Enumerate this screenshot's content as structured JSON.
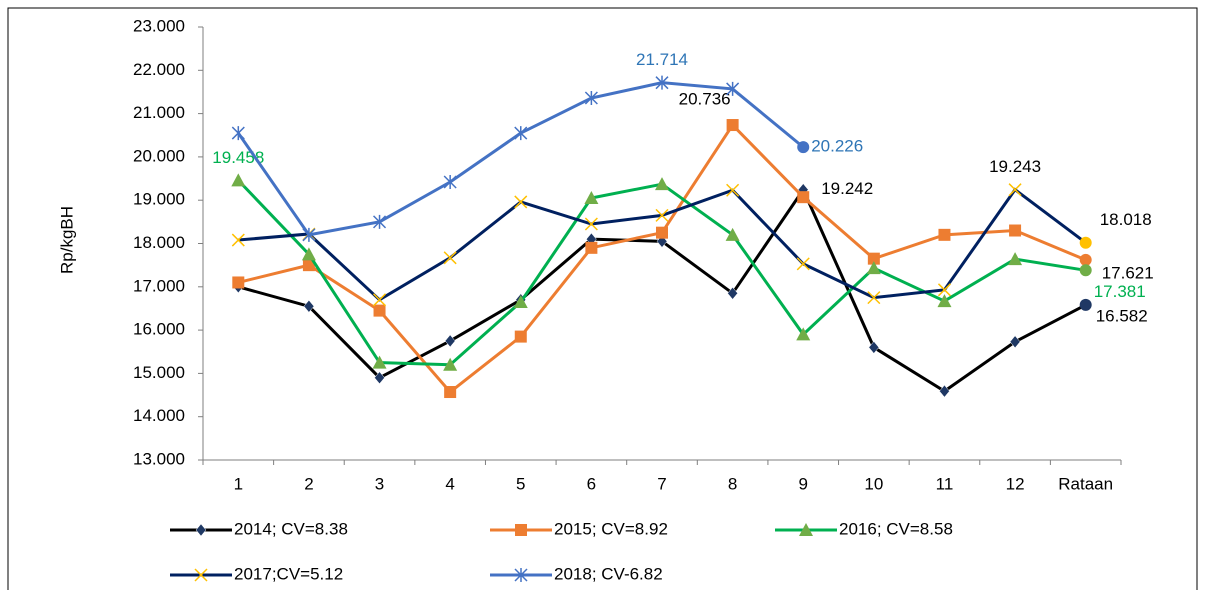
{
  "chart_data": {
    "type": "line",
    "y_label": "Rp/kgBH",
    "categories": [
      "1",
      "2",
      "3",
      "4",
      "5",
      "6",
      "7",
      "8",
      "9",
      "10",
      "11",
      "12",
      "Rataan"
    ],
    "ylim": [
      13000,
      23000
    ],
    "yticks": [
      {
        "value": 13000,
        "label": "13.000"
      },
      {
        "value": 14000,
        "label": "14.000"
      },
      {
        "value": 15000,
        "label": "15.000"
      },
      {
        "value": 16000,
        "label": "16.000"
      },
      {
        "value": 17000,
        "label": "17.000"
      },
      {
        "value": 18000,
        "label": "18.000"
      },
      {
        "value": 19000,
        "label": "19.000"
      },
      {
        "value": 20000,
        "label": "20.000"
      },
      {
        "value": 21000,
        "label": "21.000"
      },
      {
        "value": 22000,
        "label": "22.000"
      },
      {
        "value": 23000,
        "label": "23.000"
      }
    ],
    "series": [
      {
        "name": "2014; CV=8.38",
        "color": "#000000",
        "marker": "diamond",
        "marker_color": "#1f3864",
        "label_color": "#000000",
        "values": [
          17000,
          16550,
          14900,
          15750,
          16700,
          18100,
          18050,
          16850,
          19242,
          15600,
          14590,
          15730,
          16582
        ],
        "value_labels": [
          null,
          null,
          null,
          null,
          null,
          null,
          null,
          null,
          "19.242",
          null,
          null,
          null,
          "16.582"
        ]
      },
      {
        "name": "2015; CV=8.92",
        "color": "#ed7d31",
        "marker": "square",
        "marker_color": "#ed7d31",
        "label_color": "#000000",
        "values": [
          17100,
          17500,
          16450,
          14570,
          15850,
          17900,
          18250,
          20736,
          19070,
          17650,
          18200,
          18300,
          17621
        ],
        "value_labels": [
          null,
          null,
          null,
          null,
          null,
          null,
          null,
          "20.736",
          null,
          null,
          null,
          null,
          "17.621"
        ]
      },
      {
        "name": "2016; CV=8.58",
        "color": "#00b050",
        "marker": "triangle",
        "marker_color": "#70ad47",
        "label_color": "#00b050",
        "values": [
          19458,
          17750,
          15250,
          15200,
          16650,
          19050,
          19370,
          18200,
          15900,
          17430,
          16670,
          17640,
          17381
        ],
        "value_labels": [
          "19.458",
          null,
          null,
          null,
          null,
          null,
          null,
          null,
          null,
          null,
          null,
          null,
          "17.381"
        ]
      },
      {
        "name": "2017;CV=5.12",
        "color": "#002060",
        "marker": "x",
        "marker_color": "#ffc000",
        "label_color": "#000000",
        "values": [
          18080,
          18220,
          16700,
          17670,
          18960,
          18450,
          18650,
          19230,
          17530,
          16750,
          16930,
          19243,
          18018
        ],
        "value_labels": [
          null,
          null,
          null,
          null,
          null,
          null,
          null,
          null,
          null,
          null,
          null,
          "19.243",
          "18.018"
        ]
      },
      {
        "name": "2018; CV-6.82",
        "color": "#4472c4",
        "marker": "star",
        "marker_color": "#4472c4",
        "label_color": "#2e75b6",
        "values": [
          20550,
          18200,
          18500,
          19420,
          20550,
          21360,
          21714,
          21570,
          20226,
          null,
          null,
          null,
          null
        ],
        "value_labels": [
          null,
          null,
          null,
          null,
          null,
          null,
          "21.714",
          null,
          "20.226",
          null,
          null,
          null,
          null
        ]
      }
    ]
  }
}
